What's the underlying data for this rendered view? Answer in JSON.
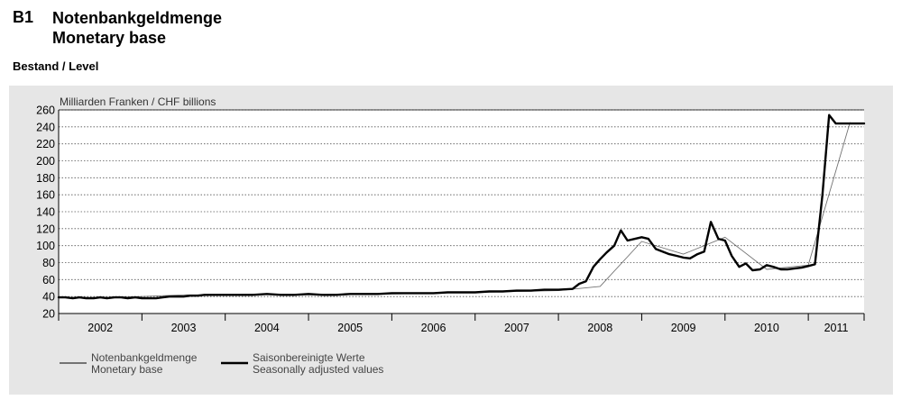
{
  "header": {
    "code": "B1",
    "title_de": "Notenbankgeldmenge",
    "title_en": "Monetary base"
  },
  "section_label": "Bestand / Level",
  "chart_data": {
    "type": "line",
    "unit_label": "Milliarden Franken / CHF billions",
    "ylim": [
      20,
      260
    ],
    "yticks": [
      20,
      40,
      60,
      80,
      100,
      120,
      140,
      160,
      180,
      200,
      220,
      240,
      260
    ],
    "grid": true,
    "x_start_year": 2002,
    "x_end_year": 2011.67,
    "year_labels": [
      "2002",
      "2003",
      "2004",
      "2005",
      "2006",
      "2007",
      "2008",
      "2009",
      "2010",
      "2011"
    ],
    "legend_position": "bottom-left",
    "series": [
      {
        "name": "Notenbankgeldmenge / Monetary base",
        "legend_de": "Notenbankgeldmenge",
        "legend_en": "Monetary base",
        "style": "thin",
        "x": [
          2002.0,
          2002.5,
          2003.0,
          2003.5,
          2004.0,
          2004.5,
          2005.0,
          2005.5,
          2006.0,
          2006.5,
          2007.0,
          2007.5,
          2008.0,
          2008.5,
          2009.0,
          2009.5,
          2010.0,
          2010.5,
          2011.0,
          2011.5
        ],
        "values": [
          39,
          39,
          40,
          42,
          42,
          43,
          42,
          43,
          43,
          44,
          45,
          46,
          47,
          52,
          105,
          90,
          110,
          72,
          77,
          245
        ]
      },
      {
        "name": "Saisonbereinigte Werte / Seasonally adjusted values",
        "legend_de": "Saisonbereinigte Werte",
        "legend_en": "Seasonally adjusted values",
        "style": "thick",
        "x": [
          2002.0,
          2002.08,
          2002.17,
          2002.25,
          2002.33,
          2002.42,
          2002.5,
          2002.58,
          2002.67,
          2002.75,
          2002.83,
          2002.92,
          2003.0,
          2003.08,
          2003.17,
          2003.25,
          2003.33,
          2003.42,
          2003.5,
          2003.58,
          2003.67,
          2003.75,
          2003.83,
          2003.92,
          2004.0,
          2004.17,
          2004.33,
          2004.5,
          2004.67,
          2004.83,
          2005.0,
          2005.17,
          2005.33,
          2005.5,
          2005.67,
          2005.83,
          2006.0,
          2006.17,
          2006.33,
          2006.5,
          2006.67,
          2006.83,
          2007.0,
          2007.17,
          2007.33,
          2007.5,
          2007.67,
          2007.83,
          2008.0,
          2008.17,
          2008.25,
          2008.33,
          2008.42,
          2008.5,
          2008.58,
          2008.67,
          2008.75,
          2008.83,
          2008.92,
          2009.0,
          2009.08,
          2009.17,
          2009.25,
          2009.33,
          2009.42,
          2009.5,
          2009.58,
          2009.67,
          2009.75,
          2009.83,
          2009.92,
          2010.0,
          2010.08,
          2010.17,
          2010.25,
          2010.33,
          2010.42,
          2010.5,
          2010.58,
          2010.67,
          2010.75,
          2010.83,
          2010.92,
          2011.0,
          2011.08,
          2011.17,
          2011.25,
          2011.33,
          2011.42,
          2011.5,
          2011.58,
          2011.67
        ],
        "values": [
          39,
          39,
          38,
          39,
          38,
          38,
          39,
          38,
          39,
          39,
          38,
          39,
          38,
          38,
          38,
          39,
          40,
          40,
          40,
          41,
          41,
          42,
          42,
          42,
          42,
          42,
          42,
          43,
          42,
          42,
          43,
          42,
          42,
          43,
          43,
          43,
          44,
          44,
          44,
          44,
          45,
          45,
          45,
          46,
          46,
          47,
          47,
          48,
          48,
          49,
          55,
          58,
          75,
          84,
          92,
          100,
          118,
          106,
          108,
          110,
          108,
          96,
          93,
          90,
          88,
          86,
          85,
          90,
          93,
          128,
          108,
          106,
          88,
          75,
          79,
          71,
          72,
          77,
          75,
          72,
          72,
          73,
          74,
          76,
          78,
          160,
          254,
          244,
          244,
          244,
          244,
          244
        ]
      }
    ]
  }
}
